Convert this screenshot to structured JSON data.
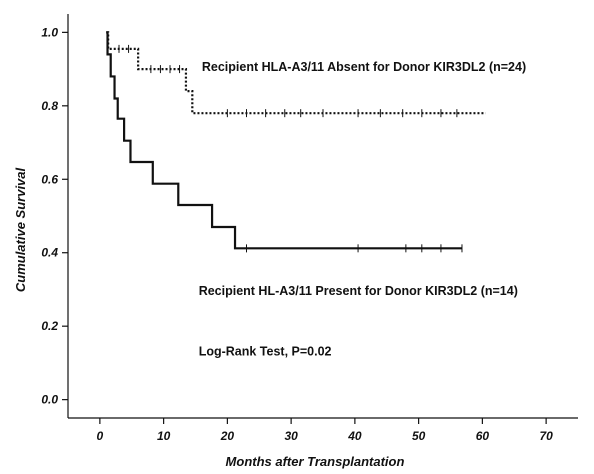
{
  "chart_data": {
    "type": "line",
    "subtype": "kaplan-meier",
    "title": "",
    "xlabel": "Months after Transplantation",
    "ylabel": "Cumulative Survival",
    "xlim": [
      -5,
      75
    ],
    "ylim": [
      -0.05,
      1.05
    ],
    "x_ticks": [
      0,
      10,
      20,
      30,
      40,
      50,
      60,
      70
    ],
    "y_ticks": [
      0.0,
      0.2,
      0.4,
      0.6,
      0.8,
      1.0
    ],
    "x_tick_labels": [
      "0",
      "10",
      "20",
      "30",
      "40",
      "50",
      "60",
      "70"
    ],
    "y_tick_labels": [
      "0.0",
      "0.2",
      "0.4",
      "0.6",
      "0.8",
      "1.0"
    ],
    "grid": false,
    "series": [
      {
        "name": "Recipient HLA-A3/11 Absent for Donor KIR3DL2 (n=24)",
        "line_style": "dotted",
        "color": "#111111",
        "steps": [
          [
            1,
            1.0
          ],
          [
            1.3,
            0.955
          ],
          [
            6,
            0.9
          ],
          [
            13.5,
            0.84
          ],
          [
            14.5,
            0.78
          ],
          [
            60.5,
            0.78
          ]
        ],
        "censored_x": [
          3,
          4.5,
          8,
          9.5,
          11,
          12.5,
          20,
          23,
          26,
          29,
          31.5,
          35,
          40.5,
          44,
          47.5,
          50.5,
          53.5,
          56
        ]
      },
      {
        "name": "Recipient HL-A3/11 Present for Donor KIR3DL2 (n=14)",
        "line_style": "solid",
        "color": "#111111",
        "steps": [
          [
            1,
            1.0
          ],
          [
            1.2,
            0.94
          ],
          [
            1.7,
            0.88
          ],
          [
            2.3,
            0.82
          ],
          [
            2.8,
            0.765
          ],
          [
            3.8,
            0.705
          ],
          [
            4.8,
            0.647
          ],
          [
            8.3,
            0.588
          ],
          [
            12.3,
            0.53
          ],
          [
            17.6,
            0.47
          ],
          [
            21.2,
            0.412
          ],
          [
            56.8,
            0.412
          ]
        ],
        "censored_x": [
          23,
          40.5,
          48,
          50.5,
          53.5,
          56.8
        ]
      }
    ],
    "annotations": [
      {
        "text": "Recipient HLA-A3/11 Absent for Donor KIR3DL2 (n=24)",
        "x": 16,
        "y": 0.895
      },
      {
        "text": "Recipient HL-A3/11 Present for Donor KIR3DL2 (n=14)",
        "x": 15.5,
        "y": 0.285
      },
      {
        "text": "Log-Rank Test, P=0.02",
        "x": 15.5,
        "y": 0.12
      }
    ]
  }
}
